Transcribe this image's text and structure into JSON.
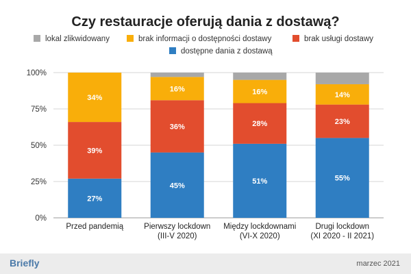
{
  "colors": {
    "lokal": "#a8a8a8",
    "brak_info": "#f9ae0a",
    "brak_uslugi": "#e24d2e",
    "dostepne": "#2f7ec2"
  },
  "chart_data": {
    "type": "bar",
    "stacked": true,
    "title": "Czy restauracje oferują dania z dostawą?",
    "categories": [
      [
        "Przed pandemią"
      ],
      [
        "Pierwszy lockdown",
        "(III-V 2020)"
      ],
      [
        "Między lockdownami",
        "(VI-X 2020)"
      ],
      [
        "Drugi lockdown",
        "(XI 2020 - II 2021)"
      ]
    ],
    "series": [
      {
        "name": "dostępne dania z dostawą",
        "key": "dostepne",
        "values": [
          27,
          45,
          51,
          55
        ],
        "labels": [
          "27%",
          "45%",
          "51%",
          "55%"
        ]
      },
      {
        "name": "brak usługi dostawy",
        "key": "brak_uslugi",
        "values": [
          39,
          36,
          28,
          23
        ],
        "labels": [
          "39%",
          "36%",
          "28%",
          "23%"
        ]
      },
      {
        "name": "brak informacji o dostępności dostawy",
        "key": "brak_info",
        "values": [
          34,
          16,
          16,
          14
        ],
        "labels": [
          "34%",
          "16%",
          "16%",
          "14%"
        ]
      },
      {
        "name": "lokal zlikwidowany",
        "key": "lokal",
        "values": [
          0,
          3,
          5,
          8
        ],
        "labels": [
          "",
          "",
          "",
          ""
        ]
      }
    ],
    "legend_order": [
      "lokal",
      "brak_info",
      "brak_uslugi",
      "dostepne"
    ],
    "yticks": [
      "0%",
      "25%",
      "50%",
      "75%",
      "100%"
    ],
    "ylim": [
      0,
      100
    ],
    "legend_position": "top",
    "grid": true
  },
  "footer": {
    "brand": "Briefly",
    "date": "marzec 2021"
  }
}
